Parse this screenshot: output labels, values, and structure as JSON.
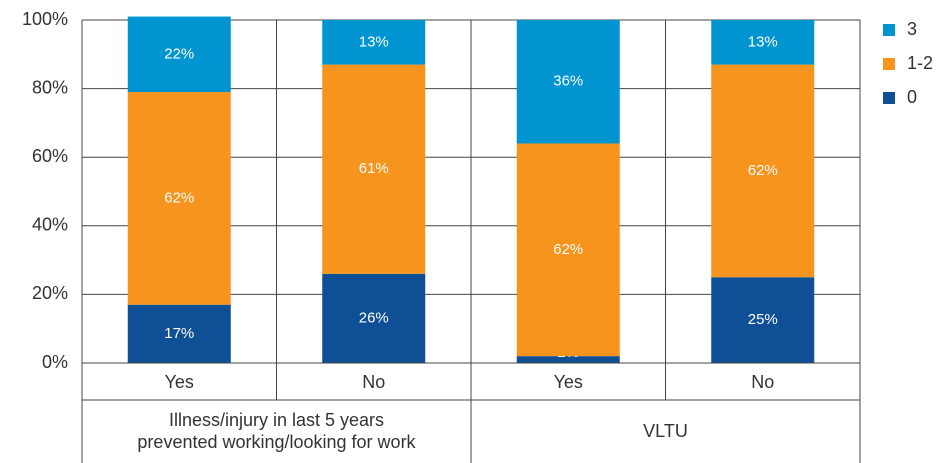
{
  "chart_data": {
    "type": "stacked_bar",
    "categories": [
      "Yes",
      "No",
      "Yes",
      "No"
    ],
    "groups": [
      {
        "lines": [
          "Illness/injury in last 5 years",
          "prevented working/looking for work"
        ]
      },
      {
        "lines": [
          "VLTU"
        ]
      }
    ],
    "series": [
      {
        "name": "0",
        "color": "#0f4f96",
        "values": [
          17,
          26,
          2,
          25
        ],
        "value_labels": [
          "17%",
          "26%",
          "2%",
          "25%"
        ]
      },
      {
        "name": "1-2",
        "color": "#f7941d",
        "values": [
          62,
          61,
          62,
          62
        ],
        "value_labels": [
          "62%",
          "61%",
          "62%",
          "62%"
        ]
      },
      {
        "name": "3",
        "color": "#0095d0",
        "values": [
          22,
          13,
          36,
          13
        ],
        "value_labels": [
          "22%",
          "13%",
          "36%",
          "13%"
        ]
      }
    ],
    "ylim": [
      0,
      100
    ],
    "yticks": [
      {
        "value": 0,
        "label": "0%"
      },
      {
        "value": 20,
        "label": "20%"
      },
      {
        "value": 40,
        "label": "40%"
      },
      {
        "value": 60,
        "label": "60%"
      },
      {
        "value": 80,
        "label": "80%"
      },
      {
        "value": 100,
        "label": "100%"
      }
    ],
    "grid": true,
    "legend": "right"
  }
}
